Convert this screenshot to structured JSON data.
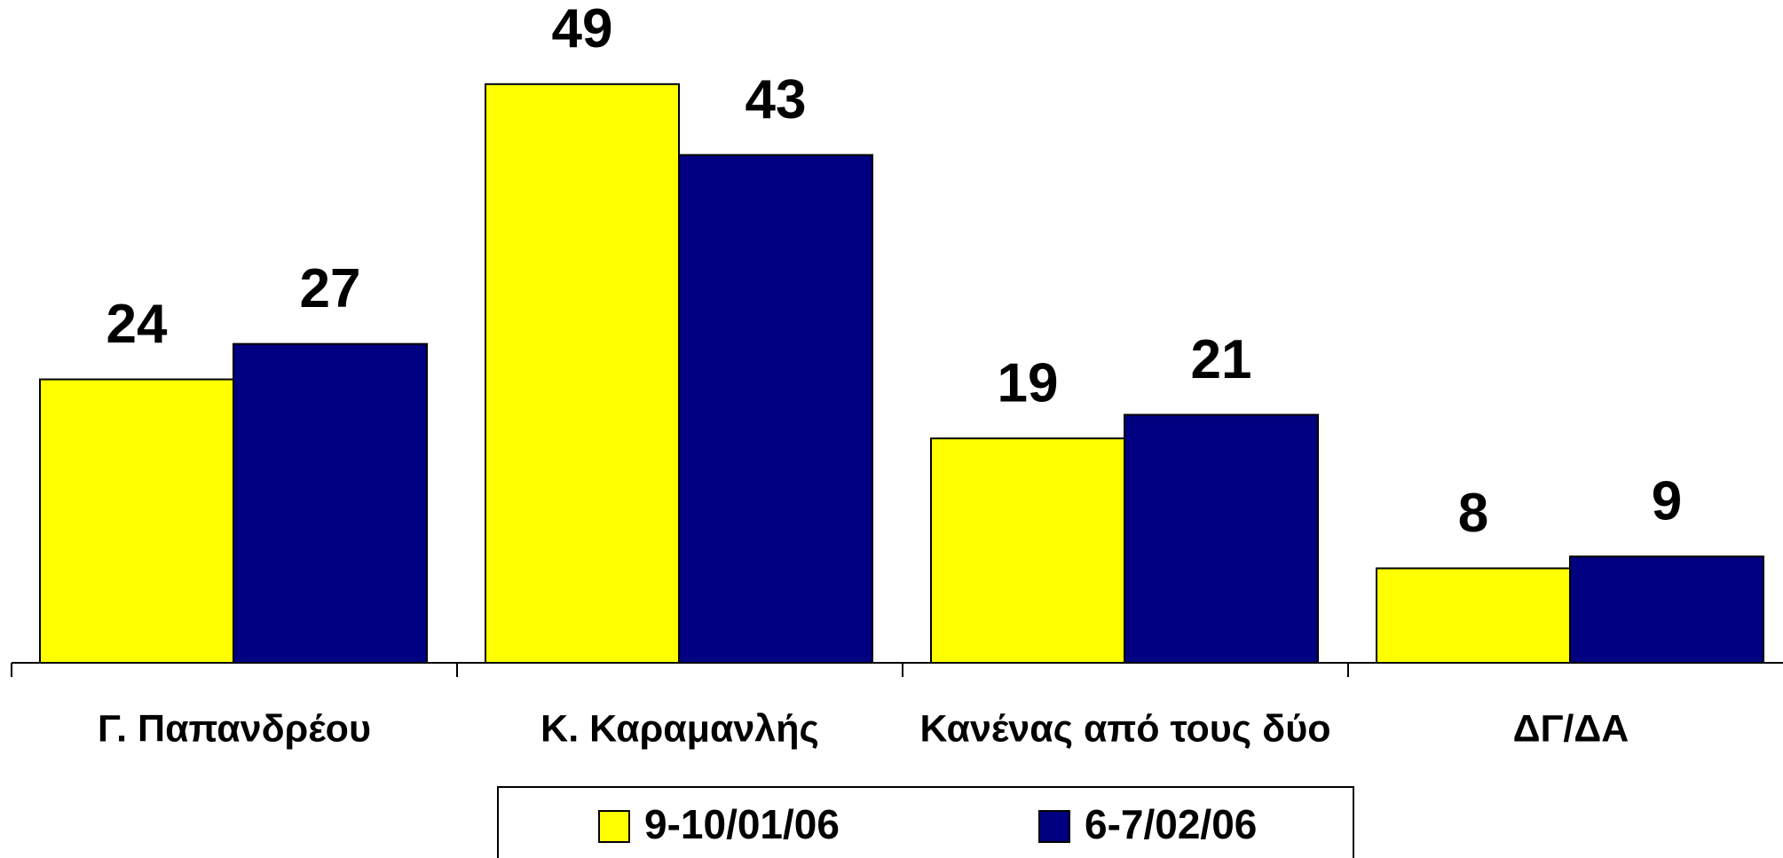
{
  "chart_data": {
    "type": "bar",
    "categories": [
      "Γ. Παπανδρέου",
      "Κ. Καραμανλής",
      "Κανένας από τους δύο",
      "ΔΓ/ΔΑ"
    ],
    "series": [
      {
        "name": "9-10/01/06",
        "color": "#ffff00",
        "values": [
          24,
          49,
          19,
          8
        ]
      },
      {
        "name": "6-7/02/06",
        "color": "#000080",
        "values": [
          27,
          43,
          21,
          9
        ]
      }
    ],
    "legend": "bottom"
  }
}
